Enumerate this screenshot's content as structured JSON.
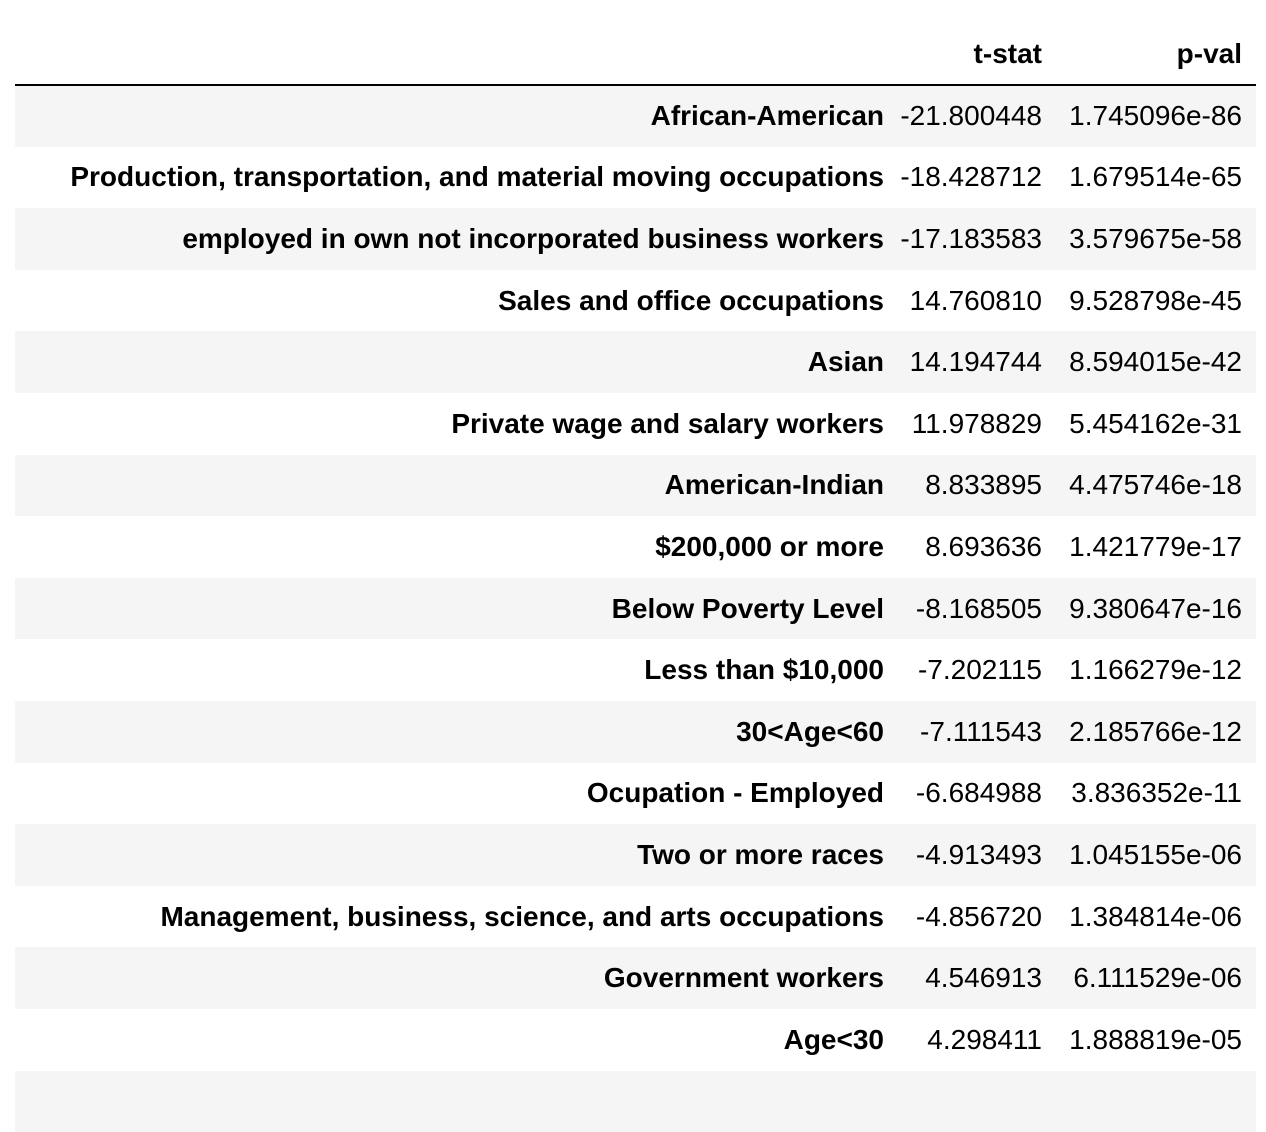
{
  "table": {
    "columns": [
      "",
      "t-stat",
      "p-val"
    ],
    "rows": [
      {
        "label": "African-American",
        "t_stat": "-21.800448",
        "p_val": "1.745096e-86"
      },
      {
        "label": "Production, transportation, and material moving occupations",
        "t_stat": "-18.428712",
        "p_val": "1.679514e-65"
      },
      {
        "label": "employed in own not incorporated business workers",
        "t_stat": "-17.183583",
        "p_val": "3.579675e-58"
      },
      {
        "label": "Sales and office occupations",
        "t_stat": "14.760810",
        "p_val": "9.528798e-45"
      },
      {
        "label": "Asian",
        "t_stat": "14.194744",
        "p_val": "8.594015e-42"
      },
      {
        "label": "Private wage and salary workers",
        "t_stat": "11.978829",
        "p_val": "5.454162e-31"
      },
      {
        "label": "American-Indian",
        "t_stat": "8.833895",
        "p_val": "4.475746e-18"
      },
      {
        "label": "$200,000 or more",
        "t_stat": "8.693636",
        "p_val": "1.421779e-17"
      },
      {
        "label": "Below Poverty Level",
        "t_stat": "-8.168505",
        "p_val": "9.380647e-16"
      },
      {
        "label": "Less than $10,000",
        "t_stat": "-7.202115",
        "p_val": "1.166279e-12"
      },
      {
        "label": "30<Age<60",
        "t_stat": "-7.111543",
        "p_val": "2.185766e-12"
      },
      {
        "label": "Ocupation - Employed",
        "t_stat": "-6.684988",
        "p_val": "3.836352e-11"
      },
      {
        "label": "Two or more races",
        "t_stat": "-4.913493",
        "p_val": "1.045155e-06"
      },
      {
        "label": "Management, business, science, and arts occupations",
        "t_stat": "-4.856720",
        "p_val": "1.384814e-06"
      },
      {
        "label": "Government workers",
        "t_stat": "4.546913",
        "p_val": "6.111529e-06"
      },
      {
        "label": "Age<30",
        "t_stat": "4.298411",
        "p_val": "1.888819e-05"
      },
      {
        "label": "",
        "t_stat": "",
        "p_val": ""
      }
    ]
  },
  "colors": {
    "stripe": "#f5f5f5",
    "background": "#ffffff",
    "text": "#000000"
  }
}
